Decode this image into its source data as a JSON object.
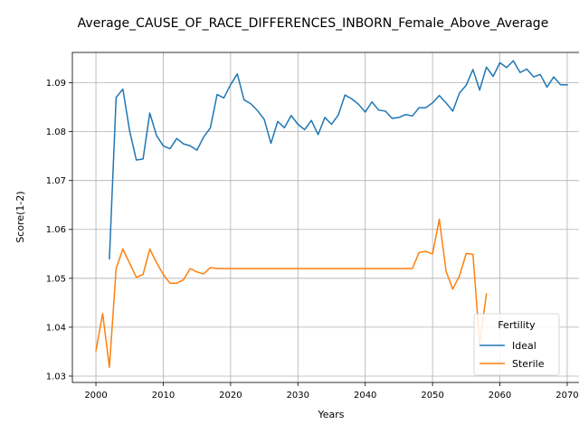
{
  "chart_data": {
    "type": "line",
    "title": "Average_CAUSE_OF_RACE_DIFFERENCES_INBORN_Female_Above_Average",
    "xlabel": "Years",
    "ylabel": "Score(1-2)",
    "xlim": [
      1996.5,
      2073.5
    ],
    "ylim": [
      1.0287,
      1.0962
    ],
    "xticks": [
      2000,
      2010,
      2020,
      2030,
      2040,
      2050,
      2060,
      2070
    ],
    "yticks": [
      1.03,
      1.04,
      1.05,
      1.06,
      1.07,
      1.08,
      1.09
    ],
    "ytick_labels": [
      "1.03",
      "1.04",
      "1.05",
      "1.06",
      "1.07",
      "1.08",
      "1.09"
    ],
    "grid": true,
    "legend": {
      "title": "Fertility",
      "placement": "lower right"
    },
    "series": [
      {
        "name": "Ideal",
        "color": "#1f77b4",
        "x": [
          2002,
          2003,
          2004,
          2005,
          2006,
          2007,
          2008,
          2009,
          2010,
          2011,
          2012,
          2013,
          2014,
          2015,
          2016,
          2017,
          2018,
          2019,
          2020,
          2021,
          2022,
          2023,
          2024,
          2025,
          2026,
          2027,
          2028,
          2029,
          2030,
          2031,
          2032,
          2033,
          2034,
          2035,
          2036,
          2037,
          2038,
          2039,
          2040,
          2041,
          2042,
          2043,
          2044,
          2045,
          2046,
          2047,
          2048,
          2049,
          2050,
          2051,
          2052,
          2053,
          2054,
          2055,
          2056,
          2057,
          2058,
          2059,
          2060,
          2061,
          2062,
          2063,
          2064,
          2065,
          2066,
          2067,
          2068,
          2069,
          2070
        ],
        "values": [
          1.054,
          1.087,
          1.0887,
          1.0802,
          1.0742,
          1.0744,
          1.0838,
          1.0792,
          1.0771,
          1.0765,
          1.0786,
          1.0775,
          1.0771,
          1.0762,
          1.0789,
          1.0808,
          1.0876,
          1.0869,
          1.0896,
          1.0918,
          1.0865,
          1.0857,
          1.0843,
          1.0825,
          1.0776,
          1.0821,
          1.0808,
          1.0833,
          1.0815,
          1.0804,
          1.0823,
          1.0794,
          1.0829,
          1.0815,
          1.0834,
          1.0875,
          1.0867,
          1.0856,
          1.084,
          1.0861,
          1.0844,
          1.0842,
          1.0827,
          1.0829,
          1.0835,
          1.0832,
          1.0849,
          1.0849,
          1.0859,
          1.0874,
          1.0859,
          1.0842,
          1.0879,
          1.0895,
          1.0927,
          1.0885,
          1.0932,
          1.0913,
          1.0941,
          1.0931,
          1.0945,
          1.0921,
          1.0928,
          1.0912,
          1.0917,
          1.0891,
          1.0912,
          1.0896,
          1.0896
        ]
      },
      {
        "name": "Sterile",
        "color": "#ff7f0e",
        "x": [
          2000,
          2001,
          2002,
          2003,
          2004,
          2005,
          2006,
          2007,
          2008,
          2009,
          2010,
          2011,
          2012,
          2013,
          2014,
          2015,
          2016,
          2017,
          2018,
          2019,
          2020,
          2021,
          2022,
          2023,
          2024,
          2025,
          2026,
          2027,
          2028,
          2029,
          2030,
          2031,
          2032,
          2033,
          2034,
          2035,
          2036,
          2037,
          2038,
          2039,
          2040,
          2041,
          2042,
          2043,
          2044,
          2045,
          2046,
          2047,
          2048,
          2049,
          2050,
          2051,
          2052,
          2053,
          2054,
          2055,
          2056,
          2057,
          2058
        ],
        "values": [
          1.0352,
          1.0428,
          1.0318,
          1.052,
          1.056,
          1.0531,
          1.0502,
          1.0508,
          1.056,
          1.0532,
          1.0508,
          1.049,
          1.049,
          1.0497,
          1.052,
          1.0513,
          1.0509,
          1.0522,
          1.052,
          1.052,
          1.052,
          1.052,
          1.052,
          1.052,
          1.052,
          1.052,
          1.052,
          1.052,
          1.052,
          1.052,
          1.052,
          1.052,
          1.052,
          1.052,
          1.052,
          1.052,
          1.052,
          1.052,
          1.052,
          1.052,
          1.052,
          1.052,
          1.052,
          1.052,
          1.052,
          1.052,
          1.052,
          1.052,
          1.0553,
          1.0555,
          1.055,
          1.0621,
          1.0515,
          1.0478,
          1.0505,
          1.0551,
          1.0549,
          1.0367,
          1.0468
        ]
      }
    ]
  }
}
